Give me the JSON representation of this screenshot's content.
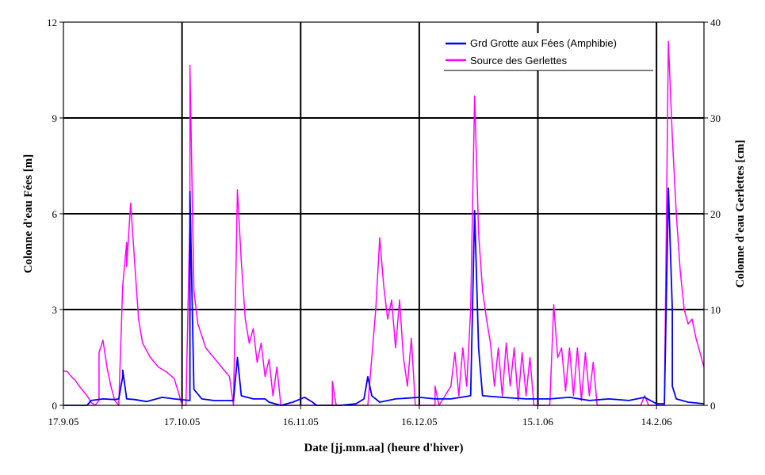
{
  "chart_data": {
    "type": "line",
    "xlabel": "Date [jj.mm.aa] (heure d'hiver)",
    "ylabel_left": "Colonne d'eau Fées [m]",
    "ylabel_right": "Colonne d'eau Gerlettes [cm]",
    "x_range": [
      "2005-09-17",
      "2006-02-26"
    ],
    "x_tick_labels": [
      "17.9.05",
      "17.10.05",
      "16.11.05",
      "16.12.05",
      "15.1.06",
      "14.2.06"
    ],
    "x_tick_dates": [
      "2005-09-17",
      "2005-10-17",
      "2005-11-16",
      "2005-12-16",
      "2006-01-15",
      "2006-02-14"
    ],
    "ylim_left": [
      0,
      12
    ],
    "yticks_left": [
      0,
      3,
      6,
      9,
      12
    ],
    "ylim_right": [
      0,
      40
    ],
    "yticks_right": [
      0,
      10,
      20,
      30,
      40
    ],
    "grid": true,
    "legend_position": "top-right",
    "series": [
      {
        "name": "Grd Grotte aux Fées (Amphibie)",
        "color": "#0000ff",
        "axis": "left",
        "points": [
          [
            "2005-09-17",
            0.0
          ],
          [
            "2005-09-23",
            0.0
          ],
          [
            "2005-09-24",
            0.15
          ],
          [
            "2005-09-27",
            0.2
          ],
          [
            "2005-09-30",
            0.18
          ],
          [
            "2005-10-01",
            0.2
          ],
          [
            "2005-10-02",
            0.9
          ],
          [
            "2005-10-02",
            1.1
          ],
          [
            "2005-10-03",
            0.2
          ],
          [
            "2005-10-05",
            0.18
          ],
          [
            "2005-10-08",
            0.12
          ],
          [
            "2005-10-12",
            0.25
          ],
          [
            "2005-10-15",
            0.2
          ],
          [
            "2005-10-19",
            0.15
          ],
          [
            "2005-10-19",
            6.7
          ],
          [
            "2005-10-20",
            0.5
          ],
          [
            "2005-10-22",
            0.2
          ],
          [
            "2005-10-25",
            0.15
          ],
          [
            "2005-10-30",
            0.15
          ],
          [
            "2005-10-31",
            1.5
          ],
          [
            "2005-11-01",
            0.3
          ],
          [
            "2005-11-04",
            0.2
          ],
          [
            "2005-11-07",
            0.2
          ],
          [
            "2005-11-08",
            0.1
          ],
          [
            "2005-11-11",
            0.0
          ],
          [
            "2005-11-14",
            0.1
          ],
          [
            "2005-11-17",
            0.25
          ],
          [
            "2005-11-19",
            0.1
          ],
          [
            "2005-11-20",
            0.0
          ],
          [
            "2005-11-26",
            0.0
          ],
          [
            "2005-11-30",
            0.05
          ],
          [
            "2005-12-02",
            0.2
          ],
          [
            "2005-12-03",
            0.9
          ],
          [
            "2005-12-04",
            0.3
          ],
          [
            "2005-12-06",
            0.1
          ],
          [
            "2005-12-10",
            0.2
          ],
          [
            "2005-12-16",
            0.25
          ],
          [
            "2005-12-20",
            0.2
          ],
          [
            "2005-12-24",
            0.2
          ],
          [
            "2005-12-29",
            0.3
          ],
          [
            "2005-12-30",
            6.1
          ],
          [
            "2005-12-31",
            1.8
          ],
          [
            "2006-01-01",
            0.3
          ],
          [
            "2006-01-06",
            0.25
          ],
          [
            "2006-01-12",
            0.2
          ],
          [
            "2006-01-18",
            0.2
          ],
          [
            "2006-01-23",
            0.25
          ],
          [
            "2006-01-28",
            0.15
          ],
          [
            "2006-02-02",
            0.2
          ],
          [
            "2006-02-07",
            0.15
          ],
          [
            "2006-02-11",
            0.25
          ],
          [
            "2006-02-14",
            0.05
          ],
          [
            "2006-02-16",
            0.05
          ],
          [
            "2006-02-17",
            6.8
          ],
          [
            "2006-02-18",
            3.0
          ],
          [
            "2006-02-18",
            0.6
          ],
          [
            "2006-02-19",
            0.2
          ],
          [
            "2006-02-22",
            0.1
          ],
          [
            "2006-02-26",
            0.05
          ]
        ]
      },
      {
        "name": "Source des Gerlettes",
        "color": "#ff00ff",
        "axis": "right",
        "points": [
          [
            "2005-09-17",
            3.6
          ],
          [
            "2005-09-18",
            3.5
          ],
          [
            "2005-09-19",
            3.0
          ],
          [
            "2005-09-20",
            2.6
          ],
          [
            "2005-09-21",
            2.0
          ],
          [
            "2005-09-22",
            1.5
          ],
          [
            "2005-09-23",
            1.0
          ],
          [
            "2005-09-24",
            0.3
          ],
          [
            "2005-09-25",
            0.0
          ],
          [
            "2005-09-26",
            0.5
          ],
          [
            "2005-09-26",
            5.5
          ],
          [
            "2005-09-27",
            6.8
          ],
          [
            "2005-09-28",
            4.0
          ],
          [
            "2005-09-29",
            2.0
          ],
          [
            "2005-09-30",
            0.5
          ],
          [
            "2005-10-01",
            0.0
          ],
          [
            "2005-10-02",
            12.5
          ],
          [
            "2005-10-03",
            17.0
          ],
          [
            "2005-10-03",
            14.5
          ],
          [
            "2005-10-04",
            21.1
          ],
          [
            "2005-10-05",
            15.0
          ],
          [
            "2005-10-06",
            9.0
          ],
          [
            "2005-10-07",
            6.5
          ],
          [
            "2005-10-09",
            5.0
          ],
          [
            "2005-10-11",
            4.0
          ],
          [
            "2005-10-13",
            3.5
          ],
          [
            "2005-10-15",
            2.8
          ],
          [
            "2005-10-16",
            1.5
          ],
          [
            "2005-10-17",
            0.0
          ],
          [
            "2005-10-18",
            0.0
          ],
          [
            "2005-10-19",
            20.0
          ],
          [
            "2005-10-19",
            35.5
          ],
          [
            "2005-10-20",
            12.0
          ],
          [
            "2005-10-21",
            8.5
          ],
          [
            "2005-10-23",
            6.0
          ],
          [
            "2005-10-25",
            5.0
          ],
          [
            "2005-10-27",
            4.0
          ],
          [
            "2005-10-29",
            3.0
          ],
          [
            "2005-10-30",
            0.0
          ],
          [
            "2005-10-31",
            22.5
          ],
          [
            "2005-11-01",
            15.0
          ],
          [
            "2005-11-02",
            9.0
          ],
          [
            "2005-11-03",
            6.5
          ],
          [
            "2005-11-04",
            8.0
          ],
          [
            "2005-11-05",
            4.5
          ],
          [
            "2005-11-06",
            6.5
          ],
          [
            "2005-11-07",
            3.0
          ],
          [
            "2005-11-08",
            4.8
          ],
          [
            "2005-11-09",
            1.0
          ],
          [
            "2005-11-10",
            4.0
          ],
          [
            "2005-11-11",
            0.0
          ],
          [
            "2005-11-14",
            0.0
          ],
          [
            "2005-11-24",
            0.0
          ],
          [
            "2005-11-24",
            2.5
          ],
          [
            "2005-11-25",
            0.0
          ],
          [
            "2005-12-03",
            0.0
          ],
          [
            "2005-12-04",
            5.0
          ],
          [
            "2005-12-05",
            10.0
          ],
          [
            "2005-12-06",
            17.5
          ],
          [
            "2005-12-07",
            12.5
          ],
          [
            "2005-12-08",
            9.0
          ],
          [
            "2005-12-09",
            11.0
          ],
          [
            "2005-12-10",
            6.0
          ],
          [
            "2005-12-11",
            11.0
          ],
          [
            "2005-12-12",
            5.0
          ],
          [
            "2005-12-13",
            2.0
          ],
          [
            "2005-12-14",
            7.0
          ],
          [
            "2005-12-15",
            0.0
          ],
          [
            "2005-12-20",
            0.0
          ],
          [
            "2005-12-20",
            2.0
          ],
          [
            "2005-12-21",
            0.0
          ],
          [
            "2005-12-24",
            2.0
          ],
          [
            "2005-12-25",
            5.5
          ],
          [
            "2005-12-26",
            1.0
          ],
          [
            "2005-12-27",
            6.0
          ],
          [
            "2005-12-28",
            2.0
          ],
          [
            "2005-12-29",
            10.0
          ],
          [
            "2005-12-30",
            32.3
          ],
          [
            "2005-12-31",
            18.0
          ],
          [
            "2006-01-01",
            12.0
          ],
          [
            "2006-01-02",
            9.0
          ],
          [
            "2006-01-03",
            6.5
          ],
          [
            "2006-01-04",
            2.0
          ],
          [
            "2006-01-05",
            6.0
          ],
          [
            "2006-01-06",
            1.0
          ],
          [
            "2006-01-07",
            6.5
          ],
          [
            "2006-01-08",
            2.0
          ],
          [
            "2006-01-09",
            6.0
          ],
          [
            "2006-01-10",
            0.5
          ],
          [
            "2006-01-11",
            5.5
          ],
          [
            "2006-01-12",
            1.0
          ],
          [
            "2006-01-13",
            5.0
          ],
          [
            "2006-01-14",
            0.0
          ],
          [
            "2006-01-18",
            0.0
          ],
          [
            "2006-01-19",
            10.5
          ],
          [
            "2006-01-20",
            5.0
          ],
          [
            "2006-01-21",
            6.0
          ],
          [
            "2006-01-22",
            1.5
          ],
          [
            "2006-01-23",
            6.0
          ],
          [
            "2006-01-24",
            1.0
          ],
          [
            "2006-01-25",
            6.0
          ],
          [
            "2006-01-26",
            0.5
          ],
          [
            "2006-01-27",
            5.5
          ],
          [
            "2006-01-28",
            1.0
          ],
          [
            "2006-01-29",
            4.5
          ],
          [
            "2006-01-30",
            0.0
          ],
          [
            "2006-02-10",
            0.0
          ],
          [
            "2006-02-11",
            1.0
          ],
          [
            "2006-02-12",
            0.0
          ],
          [
            "2006-02-16",
            0.0
          ],
          [
            "2006-02-17",
            38.0
          ],
          [
            "2006-02-18",
            28.0
          ],
          [
            "2006-02-19",
            20.0
          ],
          [
            "2006-02-20",
            14.0
          ],
          [
            "2006-02-21",
            10.0
          ],
          [
            "2006-02-22",
            8.5
          ],
          [
            "2006-02-23",
            9.0
          ],
          [
            "2006-02-24",
            7.0
          ],
          [
            "2006-02-25",
            5.5
          ],
          [
            "2006-02-26",
            4.0
          ]
        ]
      }
    ]
  }
}
